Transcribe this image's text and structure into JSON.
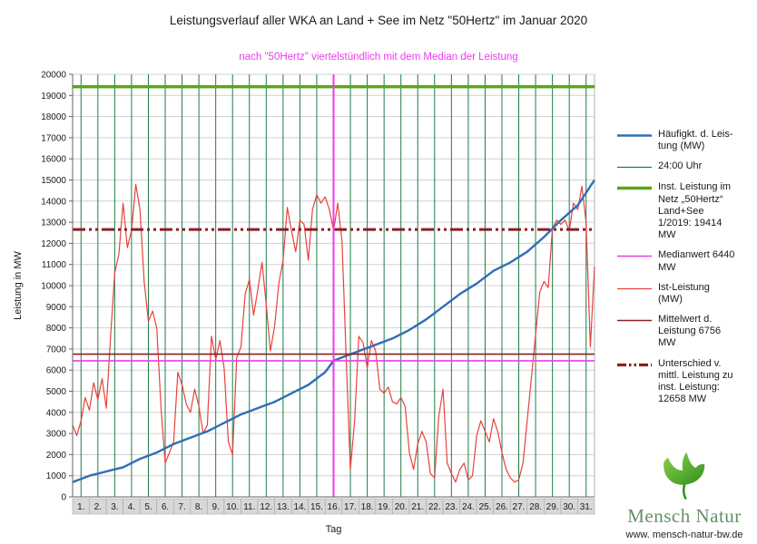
{
  "chart_data": {
    "type": "line",
    "title": "Leistungsverlauf aller WKA an Land + See im Netz \"50Hertz\" im Januar 2020",
    "subtitle": "nach \"50Hertz\" viertelstündlich mit dem Median der Leistung",
    "xlabel": "Tag",
    "ylabel": "Leistung in MW",
    "ylim": [
      0,
      20000
    ],
    "y_tick_step": 1000,
    "x_range_days": 31,
    "x_categories": [
      "1.",
      "2.",
      "3.",
      "4.",
      "5.",
      "6.",
      "7.",
      "8.",
      "9.",
      "10.",
      "11.",
      "12.",
      "13.",
      "14.",
      "15.",
      "16.",
      "17.",
      "18.",
      "19.",
      "20.",
      "21.",
      "22.",
      "23.",
      "24.",
      "25.",
      "26.",
      "27.",
      "28.",
      "29.",
      "30.",
      "31."
    ],
    "series": [
      {
        "key": "ist-leistung",
        "name": "Ist-Leistung (MW)",
        "color": "#e8423c",
        "thickness": 1.2,
        "step_days": 0.25,
        "values": [
          3400,
          2900,
          3600,
          4700,
          4100,
          5400,
          4600,
          5600,
          4200,
          7500,
          10600,
          11500,
          13900,
          11800,
          12600,
          14800,
          13600,
          10200,
          8300,
          8800,
          8000,
          4200,
          1600,
          2100,
          2600,
          5900,
          5300,
          4400,
          4000,
          5100,
          4300,
          3000,
          3400,
          7600,
          6500,
          7400,
          6100,
          2600,
          2000,
          6600,
          7100,
          9600,
          10300,
          8600,
          9800,
          11100,
          9100,
          6900,
          8100,
          10100,
          11200,
          13700,
          12600,
          11600,
          13100,
          12900,
          11200,
          13600,
          14300,
          13900,
          14200,
          13600,
          12600,
          13900,
          12100,
          6600,
          1300,
          3600,
          7600,
          7300,
          6100,
          7400,
          6900,
          5100,
          4900,
          5200,
          4500,
          4400,
          4700,
          4300,
          2100,
          1300,
          2500,
          3100,
          2600,
          1100,
          900,
          3800,
          5100,
          1600,
          1100,
          700,
          1300,
          1600,
          800,
          1000,
          2900,
          3600,
          3100,
          2600,
          3700,
          3100,
          2100,
          1300,
          900,
          700,
          800,
          1600,
          3600,
          5600,
          7700,
          9700,
          10200,
          9900,
          12700,
          13100,
          12900,
          13100,
          12600,
          13900,
          13600,
          14700,
          13000,
          7100,
          10900
        ]
      },
      {
        "key": "haeufigkeit",
        "name": "Häufigkt. d. Leistung (MW)",
        "color": "#2f6eb5",
        "thickness": 2.4,
        "x": [
          0,
          1,
          2,
          3,
          4,
          5,
          6,
          7,
          8,
          9,
          10,
          11,
          12,
          13,
          14,
          15,
          15.5,
          16,
          17,
          18,
          19,
          20,
          21,
          22,
          23,
          24,
          25,
          26,
          27,
          28,
          29,
          30,
          31
        ],
        "values": [
          700,
          1000,
          1200,
          1400,
          1800,
          2100,
          2500,
          2800,
          3100,
          3500,
          3900,
          4200,
          4500,
          4900,
          5300,
          5900,
          6440,
          6600,
          6900,
          7200,
          7500,
          7900,
          8400,
          9000,
          9600,
          10100,
          10700,
          11100,
          11600,
          12300,
          13100,
          13800,
          15000
        ]
      }
    ],
    "reference_lines": [
      {
        "key": "inst-leistung-line",
        "label": "Inst. Leistung im Netz „50Hertz“ Land+See 1/2019: 19414 MW",
        "value": 19414,
        "color": "#5ba41e",
        "thickness": 3.5,
        "dash": ""
      },
      {
        "key": "unterschied-line",
        "label": "Unterschied v. mittl. Leistung zu inst. Leistung: 12658 MW",
        "value": 12658,
        "color": "#8a1f24",
        "thickness": 3,
        "dash": "14 4 3 4 3 4"
      },
      {
        "key": "mittelwert-line",
        "label": "Mittelwert d. Leistung 6756 MW",
        "value": 6756,
        "color": "#8a1f24",
        "thickness": 1.6,
        "dash": ""
      },
      {
        "key": "medianwert-line",
        "label": "Medianwert 6440 MW",
        "value": 6440,
        "color": "#ee3bee",
        "thickness": 1.6,
        "dash": ""
      }
    ],
    "vertical_lines": {
      "midnight": {
        "label": "24:00 Uhr",
        "color": "#1e7d46",
        "thickness": 1
      },
      "median_marker": {
        "t": 15.5,
        "color": "#ee3bee",
        "thickness": 2
      }
    },
    "stats": {
      "installed_capacity_mw": 19414,
      "median_mw": 6440,
      "mean_mw": 6756,
      "difference_mw": 12658
    }
  },
  "legend": {
    "items": [
      {
        "key": "haeufigkeit",
        "label": "Häufigkt. d. Leis-\ntung (MW)",
        "color": "#2f6eb5",
        "thickness": 2.5,
        "dash": ""
      },
      {
        "key": "midnight",
        "label": "24:00 Uhr",
        "color": "#1e7d46",
        "thickness": 1.2,
        "dash": ""
      },
      {
        "key": "inst-leistung",
        "label": "Inst. Leistung im\nNetz „50Hertz“\nLand+See\n1/2019: 19414\nMW",
        "color": "#5ba41e",
        "thickness": 3.5,
        "dash": ""
      },
      {
        "key": "medianwert",
        "label": "Medianwert 6440\nMW",
        "color": "#ee3bee",
        "thickness": 1.6,
        "dash": ""
      },
      {
        "key": "ist-leistung",
        "label": "Ist-Leistung\n(MW)",
        "color": "#e8423c",
        "thickness": 1.2,
        "dash": ""
      },
      {
        "key": "mittelwert",
        "label": "Mittelwert d.\nLeistung 6756\nMW",
        "color": "#8a1f24",
        "thickness": 1.6,
        "dash": ""
      },
      {
        "key": "unterschied",
        "label": "Unterschied v.\nmittl. Leistung zu\ninst. Leistung:\n12658 MW",
        "color": "#8a1f24",
        "thickness": 3.2,
        "dash": "10 3 2.5 3 2.5 3"
      }
    ]
  },
  "logo": {
    "name": "Mensch Natur",
    "url": "www. mensch-natur-bw.de"
  },
  "colors": {
    "subtitle_magenta": "#ee3bee",
    "series_blue": "#2f6eb5",
    "series_red": "#e8423c",
    "installed_green": "#5ba41e",
    "midnight_green": "#1e7d46",
    "maroon": "#8a1f24",
    "grid_gray": "#d0d0d0",
    "label_strip_gray": "#d8d8d8",
    "logo_text_green": "#668f66",
    "leaf_light_green": "#8fd24a",
    "leaf_dark_green": "#2e8f1f"
  }
}
